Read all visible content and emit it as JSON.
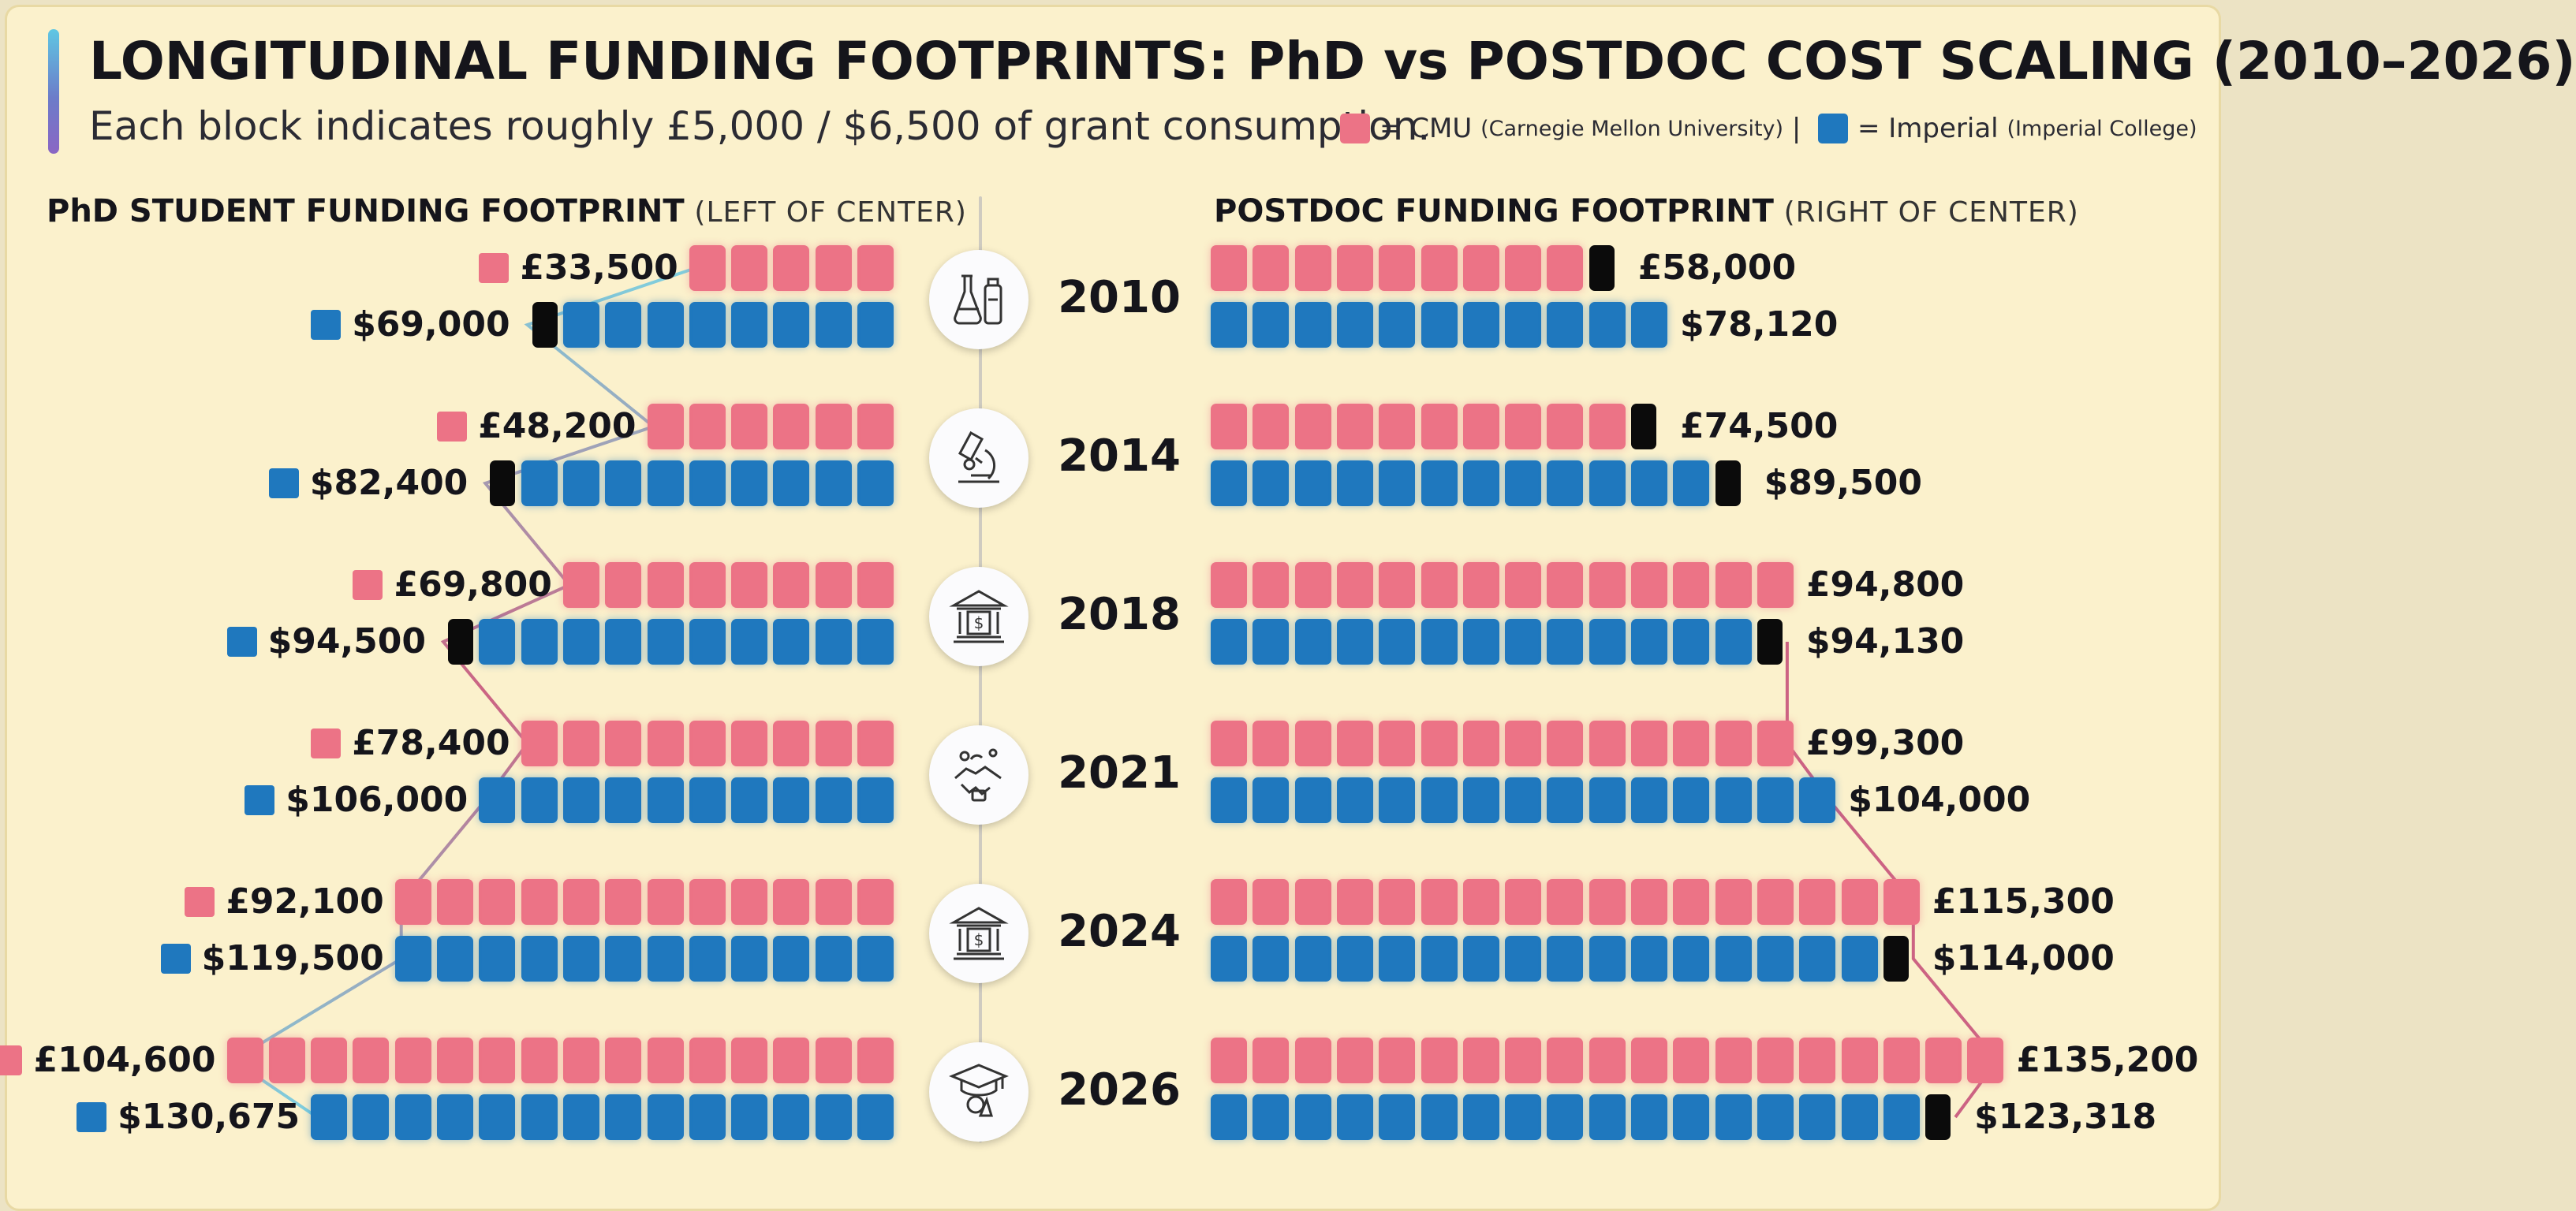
{
  "title": "LONGITUDINAL FUNDING FOOTPRINTS: PhD vs POSTDOC COST SCALING (2010–2026)",
  "subtitle": "Each block indicates roughly £5,000 / $6,500 of grant consumption.",
  "legend": {
    "cmu_prefix": "= CMU",
    "cmu_full": "(Carnegie Mellon University)",
    "separator": "|",
    "imperial_prefix": "= Imperial",
    "imperial_full": "(Imperial College)"
  },
  "colors": {
    "cmu": "#ec7386",
    "imperial": "#1f78be",
    "marker": "#0b0b0b",
    "background": "#fbf1cc"
  },
  "panels": {
    "phd": {
      "title": "PhD STUDENT FUNDING FOOTPRINT",
      "subtitle": "(LEFT OF CENTER)"
    },
    "postdoc": {
      "title": "POSTDOC FUNDING FOOTPRINT",
      "subtitle": "(RIGHT OF CENTER)"
    }
  },
  "years": [
    {
      "year": "2010",
      "icon": "lab-flasks-icon"
    },
    {
      "year": "2014",
      "icon": "microscope-icon"
    },
    {
      "year": "2018",
      "icon": "bank-icon"
    },
    {
      "year": "2021",
      "icon": "research-handshake-icon"
    },
    {
      "year": "2024",
      "icon": "bank-icon"
    },
    {
      "year": "2026",
      "icon": "graduation-research-icon"
    }
  ],
  "chart_data": {
    "type": "bar",
    "orientation": "horizontal-pictogram",
    "unit_note": "Each block indicates roughly £5,000 / $6,500 of grant consumption.",
    "categories": [
      "2010",
      "2014",
      "2018",
      "2021",
      "2024",
      "2026"
    ],
    "phd": {
      "series": [
        {
          "name": "CMU",
          "currency": "£",
          "values": [
            33500,
            48200,
            69800,
            78400,
            92100,
            104600
          ],
          "labels": [
            "£33,500",
            "£48,200",
            "£69,800",
            "£78,400",
            "£92,100",
            "£104,600"
          ],
          "blocks": [
            5,
            6,
            8,
            9,
            12,
            16
          ],
          "marker": [
            false,
            false,
            false,
            false,
            false,
            false
          ]
        },
        {
          "name": "Imperial",
          "currency": "$",
          "values": [
            69000,
            82400,
            94500,
            106000,
            119500,
            130675
          ],
          "labels": [
            "$69,000",
            "$82,400",
            "$94,500",
            "$106,000",
            "$119,500",
            "$130,675"
          ],
          "blocks": [
            8,
            9,
            10,
            10,
            12,
            14
          ],
          "marker": [
            true,
            true,
            true,
            false,
            false,
            false
          ]
        }
      ]
    },
    "postdoc": {
      "series": [
        {
          "name": "CMU",
          "currency": "£",
          "values": [
            58000,
            74500,
            94800,
            99300,
            115300,
            135200
          ],
          "labels": [
            "£58,000",
            "£74,500",
            "£94,800",
            "£99,300",
            "£115,300",
            "£135,200"
          ],
          "blocks": [
            9,
            10,
            14,
            14,
            17,
            19
          ],
          "marker": [
            true,
            true,
            false,
            false,
            false,
            false
          ]
        },
        {
          "name": "Imperial",
          "currency": "$",
          "values": [
            78120,
            89500,
            94130,
            104000,
            114000,
            123318
          ],
          "labels": [
            "$78,120",
            "$89,500",
            "$94,130",
            "$104,000",
            "$114,000",
            "$123,318"
          ],
          "blocks": [
            11,
            12,
            13,
            15,
            16,
            17
          ],
          "marker": [
            false,
            true,
            true,
            false,
            true,
            true
          ]
        }
      ]
    }
  }
}
